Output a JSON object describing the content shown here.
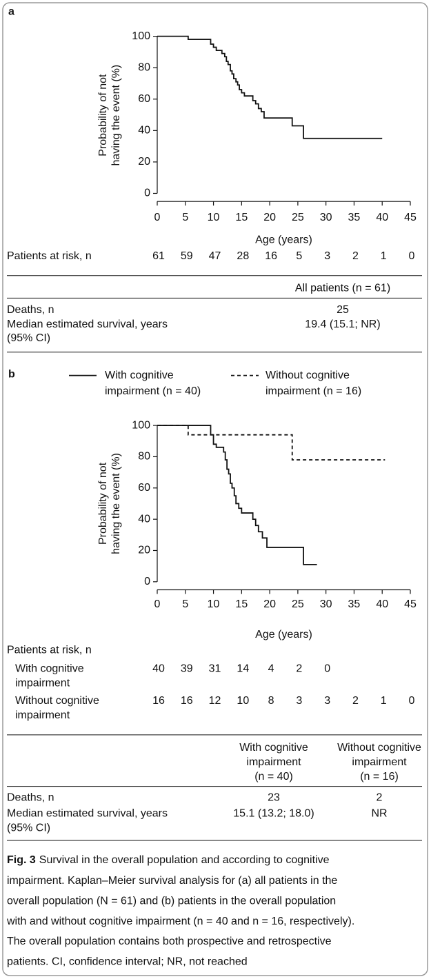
{
  "chart_data": [
    {
      "type": "line",
      "panel": "a",
      "step": true,
      "ylabel": [
        "Probability of not",
        "having the event (%)"
      ],
      "xlabel": "Age (years)",
      "xlim": [
        0,
        45
      ],
      "ylim": [
        0,
        100
      ],
      "xticks": [
        0,
        5,
        10,
        15,
        20,
        25,
        30,
        35,
        40,
        45
      ],
      "yticks": [
        0,
        20,
        40,
        60,
        80,
        100
      ],
      "series": [
        {
          "color": "#111111",
          "dashed": false,
          "x": [
            0,
            5.5,
            9.5,
            10,
            10.5,
            11.5,
            12,
            12.3,
            12.6,
            13,
            13.3,
            13.6,
            14,
            14.3,
            14.6,
            15,
            15.5,
            17,
            17.5,
            18,
            18.5,
            19,
            24,
            26,
            40
          ],
          "values": [
            100,
            98,
            95,
            93,
            91,
            89,
            87,
            84,
            82,
            78,
            76,
            73,
            71,
            69,
            66,
            64,
            62,
            59,
            57,
            54,
            52,
            48,
            43,
            35,
            35
          ]
        }
      ],
      "at_risk": {
        "label": "Patients at risk, n",
        "rows": [
          {
            "values": [
              61,
              59,
              47,
              28,
              16,
              5,
              3,
              2,
              1,
              0
            ]
          }
        ]
      },
      "summary": {
        "columns": [
          [
            "All patients (n = 61)"
          ]
        ],
        "rows": [
          {
            "label": [
              "Deaths, n"
            ],
            "cells": [
              25
            ]
          },
          {
            "label": [
              "Median estimated survival, years",
              "(95% CI)"
            ],
            "cells": [
              "19.4 (15.1; NR)"
            ]
          }
        ]
      }
    },
    {
      "type": "line",
      "panel": "b",
      "step": true,
      "ylabel": [
        "Probability of not",
        "having the event (%)"
      ],
      "xlabel": "Age (years)",
      "xlim": [
        0,
        45
      ],
      "ylim": [
        0,
        100
      ],
      "xticks": [
        0,
        5,
        10,
        15,
        20,
        25,
        30,
        35,
        40,
        45
      ],
      "yticks": [
        0,
        20,
        40,
        60,
        80,
        100
      ],
      "series": [
        {
          "name": [
            "With cognitive",
            "impairment (n = 40)"
          ],
          "color": "#111111",
          "dashed": false,
          "x": [
            0,
            9.5,
            10,
            10.5,
            11.8,
            12.1,
            12.4,
            12.7,
            13,
            13.3,
            13.7,
            14,
            14.5,
            15,
            17,
            17.5,
            18,
            18.7,
            19.5,
            26,
            28.4
          ],
          "values": [
            100,
            94,
            88,
            86,
            83,
            78,
            72,
            69,
            63,
            60,
            55,
            50,
            47,
            44,
            40,
            36,
            32,
            28,
            22,
            11,
            11
          ]
        },
        {
          "name": [
            "Without cognitive",
            "impairment (n = 16)"
          ],
          "color": "#111111",
          "dashed": true,
          "x": [
            0,
            5.5,
            24,
            40.5
          ],
          "values": [
            100,
            94,
            78,
            78
          ]
        }
      ],
      "at_risk": {
        "label": "Patients at risk, n",
        "rows": [
          {
            "label": [
              "With cognitive",
              "impairment"
            ],
            "values": [
              40,
              39,
              31,
              14,
              4,
              2,
              0
            ]
          },
          {
            "label": [
              "Without cognitive",
              "impairment"
            ],
            "values": [
              16,
              16,
              12,
              10,
              8,
              3,
              3,
              2,
              1,
              0
            ]
          }
        ]
      },
      "summary": {
        "columns": [
          [
            "With cognitive",
            "impairment",
            "(n = 40)"
          ],
          [
            "Without cognitive",
            "impairment",
            "(n = 16)"
          ]
        ],
        "rows": [
          {
            "label": [
              "Deaths, n"
            ],
            "cells": [
              23,
              2
            ]
          },
          {
            "label": [
              "Median estimated survival, years",
              "(95% CI)"
            ],
            "cells": [
              "15.1 (13.2; 18.0)",
              "NR"
            ]
          }
        ]
      }
    }
  ],
  "caption": {
    "label": "Fig. 3",
    "lines": [
      "Survival in the overall population and according to cognitive",
      "impairment. Kaplan–Meier survival analysis for (a) all patients in the",
      "overall population (N = 61) and (b) patients in the overall population",
      "with and without cognitive impairment (n = 40 and n = 16, respectively).",
      "The overall population contains both prospective and retrospective",
      "patients. CI, confidence interval; NR, not reached"
    ]
  }
}
